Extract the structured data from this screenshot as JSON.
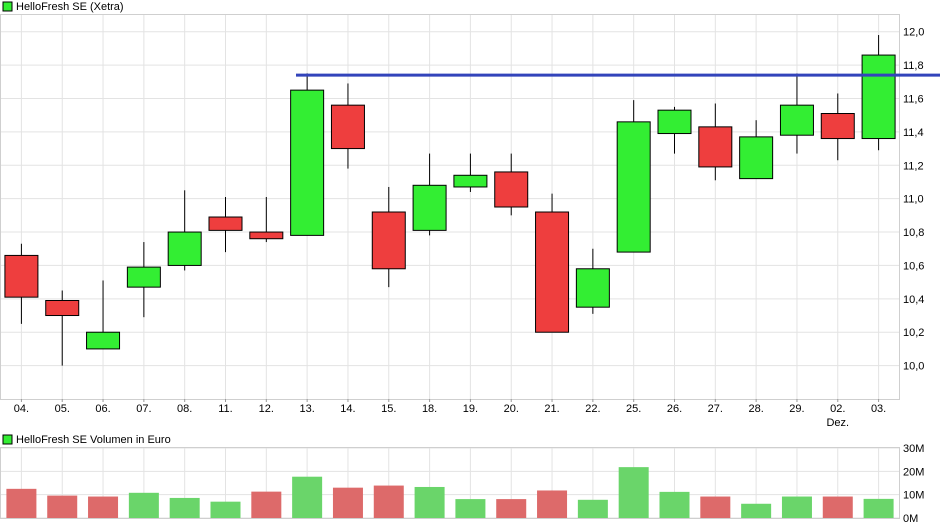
{
  "chart_data": [
    {
      "type": "candlestick",
      "legend": "HelloFresh SE (Xetra)",
      "legend_color": "#33ee33",
      "up_color": "#33ee33",
      "down_color": "#ee3e3e",
      "categories": [
        "04.",
        "05.",
        "06.",
        "07.",
        "08.",
        "11.",
        "12.",
        "13.",
        "14.",
        "15.",
        "18.",
        "19.",
        "20.",
        "21.",
        "22.",
        "25.",
        "26.",
        "27.",
        "28.",
        "29.",
        "02.",
        "03."
      ],
      "x_sublabels": {
        "20": "Dez."
      },
      "open": [
        10.66,
        10.39,
        10.1,
        10.47,
        10.6,
        10.89,
        10.8,
        10.78,
        11.56,
        10.92,
        10.81,
        11.07,
        11.16,
        10.92,
        10.35,
        10.68,
        11.39,
        11.43,
        11.12,
        11.38,
        11.51,
        11.36
      ],
      "close": [
        10.41,
        10.3,
        10.2,
        10.59,
        10.8,
        10.81,
        10.76,
        11.65,
        11.3,
        10.58,
        11.08,
        11.14,
        10.95,
        10.2,
        10.58,
        11.46,
        11.53,
        11.19,
        11.37,
        11.56,
        11.36,
        11.86
      ],
      "high": [
        10.73,
        10.45,
        10.51,
        10.74,
        11.05,
        11.01,
        11.01,
        11.75,
        11.69,
        11.07,
        11.27,
        11.27,
        11.27,
        11.03,
        10.7,
        11.59,
        11.55,
        11.57,
        11.47,
        11.75,
        11.63,
        11.98
      ],
      "low": [
        10.25,
        10.0,
        10.1,
        10.29,
        10.57,
        10.68,
        10.74,
        10.78,
        11.18,
        10.47,
        10.78,
        11.04,
        10.9,
        10.2,
        10.31,
        10.68,
        11.27,
        11.11,
        11.12,
        11.27,
        11.23,
        11.29
      ],
      "ylim": [
        9.8,
        12.1
      ],
      "yticks": [
        "10,0",
        "10,2",
        "10,4",
        "10,6",
        "10,8",
        "11,0",
        "11,2",
        "11,4",
        "11,6",
        "11,8",
        "12,0"
      ],
      "ytick_values": [
        10.0,
        10.2,
        10.4,
        10.6,
        10.8,
        11.0,
        11.2,
        11.4,
        11.6,
        11.8,
        12.0
      ],
      "hline": {
        "value": 11.74,
        "color": "#3344bb"
      },
      "grid": true
    },
    {
      "type": "bar",
      "legend": "HelloFresh SE Volumen in Euro",
      "legend_color": "#33ee33",
      "categories": [
        "04.",
        "05.",
        "06.",
        "07.",
        "08.",
        "11.",
        "12.",
        "13.",
        "14.",
        "15.",
        "18.",
        "19.",
        "20.",
        "21.",
        "22.",
        "25.",
        "26.",
        "27.",
        "28.",
        "29.",
        "02.",
        "03."
      ],
      "values": [
        12.5,
        9.6,
        9.2,
        10.8,
        8.6,
        7.0,
        11.3,
        17.7,
        13.0,
        13.9,
        13.3,
        8.1,
        8.1,
        11.8,
        7.8,
        21.8,
        11.2,
        9.2,
        6.1,
        9.2,
        9.2,
        8.2
      ],
      "colors": [
        "#dd6a6a",
        "#dd6a6a",
        "#dd6a6a",
        "#6ad56a",
        "#6ad56a",
        "#6ad56a",
        "#dd6a6a",
        "#6ad56a",
        "#dd6a6a",
        "#dd6a6a",
        "#6ad56a",
        "#6ad56a",
        "#dd6a6a",
        "#dd6a6a",
        "#6ad56a",
        "#6ad56a",
        "#6ad56a",
        "#dd6a6a",
        "#6ad56a",
        "#6ad56a",
        "#dd6a6a",
        "#6ad56a"
      ],
      "ylim": [
        0,
        30
      ],
      "yticks": [
        "30M",
        "20M",
        "10M",
        "0M"
      ],
      "ytick_values": [
        30,
        20,
        10,
        0
      ],
      "grid": true
    }
  ]
}
